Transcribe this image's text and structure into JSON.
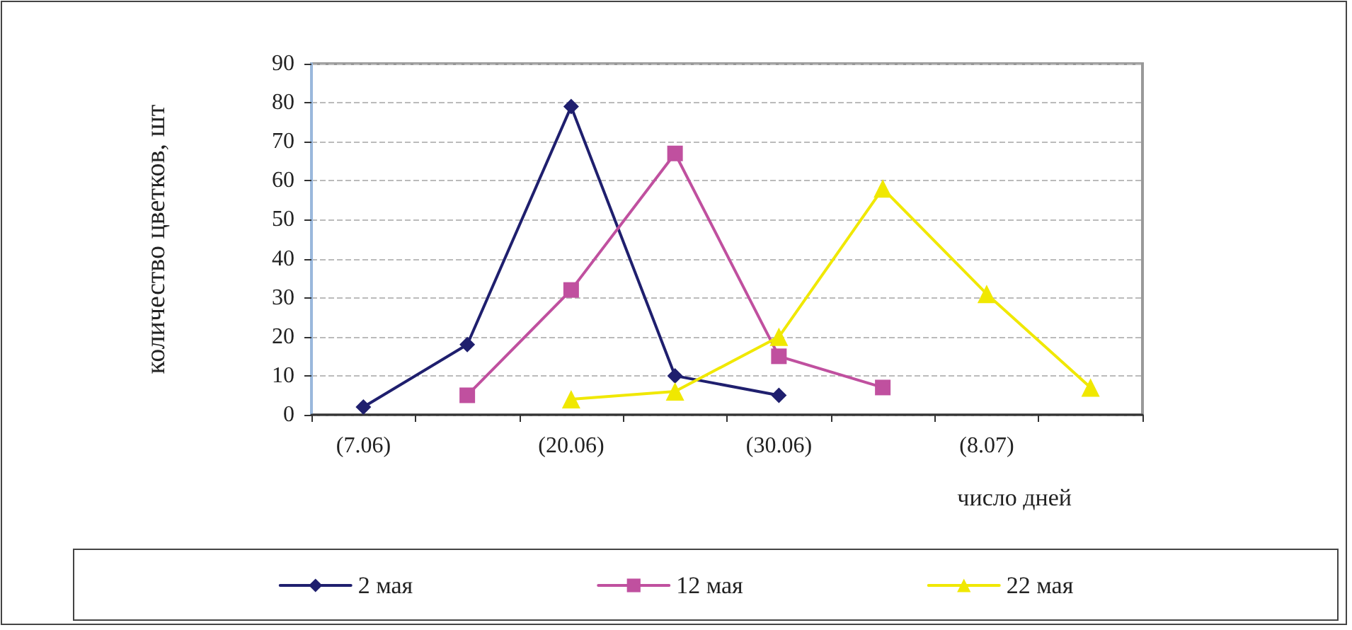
{
  "chart_data": {
    "type": "line",
    "xlabel": "число дней",
    "ylabel": "количество цветков, шт",
    "categories": [
      "(7.06)",
      null,
      "(20.06)",
      null,
      "(30.06)",
      null,
      "(8.07)",
      null
    ],
    "series": [
      {
        "name": "2 мая",
        "color": "#1f1f6e",
        "marker": "diamond",
        "values": [
          2,
          18,
          79,
          10,
          5,
          null,
          null,
          null
        ]
      },
      {
        "name": "12 мая",
        "color": "#c0509f",
        "marker": "square",
        "values": [
          null,
          5,
          32,
          67,
          15,
          7,
          null,
          null
        ]
      },
      {
        "name": "22 мая",
        "color": "#f0e800",
        "marker": "triangle",
        "values": [
          null,
          null,
          4,
          6,
          20,
          58,
          31,
          7
        ]
      }
    ],
    "ylim": [
      0,
      90
    ],
    "yticks": [
      0,
      10,
      20,
      30,
      40,
      50,
      60,
      70,
      80,
      90
    ],
    "grid": "y",
    "legend": "bottom",
    "line_style": "solid"
  }
}
